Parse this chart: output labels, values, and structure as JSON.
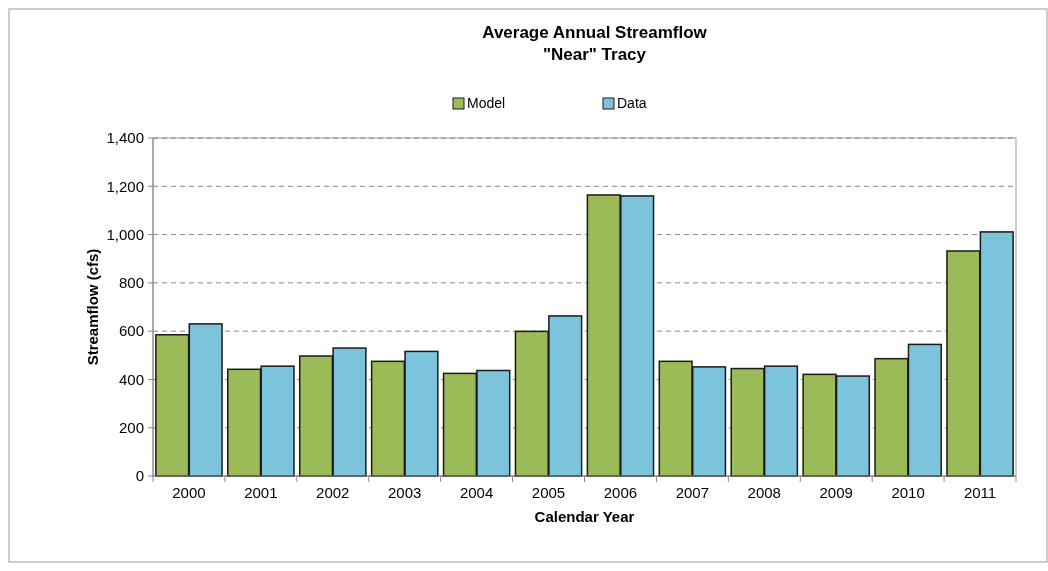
{
  "chart_data": {
    "type": "bar",
    "title": "Average Annual Streamflow",
    "subtitle": "\"Near\" Tracy",
    "xlabel": "Calendar Year",
    "ylabel": "Streamflow (cfs)",
    "categories": [
      "2000",
      "2001",
      "2002",
      "2003",
      "2004",
      "2005",
      "2006",
      "2007",
      "2008",
      "2009",
      "2010",
      "2011"
    ],
    "series": [
      {
        "name": "Model",
        "color": "#9bbb59",
        "values": [
          585,
          442,
          497,
          475,
          425,
          599,
          1164,
          475,
          445,
          421,
          486,
          932
        ]
      },
      {
        "name": "Data",
        "color": "#7cc3dc",
        "values": [
          630,
          455,
          530,
          516,
          437,
          663,
          1160,
          452,
          455,
          414,
          545,
          1011
        ]
      }
    ],
    "ylim": [
      0,
      1400
    ],
    "yticks": [
      {
        "value": 0,
        "label": "0"
      },
      {
        "value": 200,
        "label": "200"
      },
      {
        "value": 400,
        "label": "400"
      },
      {
        "value": 600,
        "label": "600"
      },
      {
        "value": 800,
        "label": "800"
      },
      {
        "value": 1000,
        "label": "1,000"
      },
      {
        "value": 1200,
        "label": "1,200"
      },
      {
        "value": 1400,
        "label": "1,400"
      }
    ],
    "grid": "y",
    "legend": "top"
  }
}
